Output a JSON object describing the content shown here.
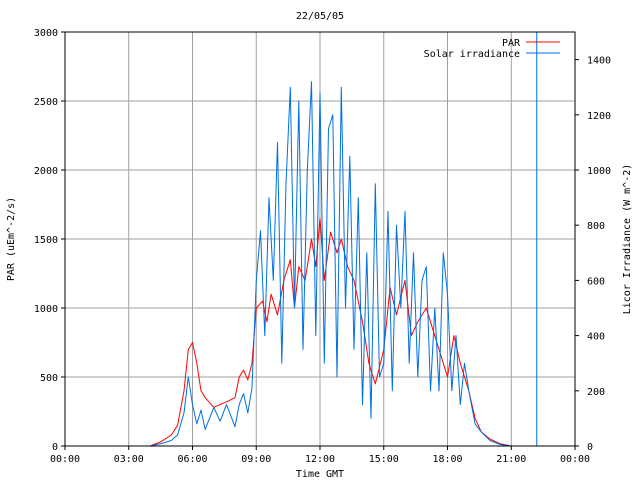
{
  "chart_data": {
    "type": "line",
    "title": "22/05/05",
    "xlabel": "Time GMT",
    "ylabel_left": "PAR (uEm^-2/s)",
    "ylabel_right": "Licor Irradiance (W m^-2)",
    "x_ticks": [
      "00:00",
      "03:00",
      "06:00",
      "09:00",
      "12:00",
      "15:00",
      "18:00",
      "21:00",
      "00:00"
    ],
    "xlim_hours": [
      0,
      24
    ],
    "ylim_left": [
      0,
      3000
    ],
    "y_ticks_left": [
      0,
      500,
      1000,
      1500,
      2000,
      2500,
      3000
    ],
    "ylim_right": [
      0,
      1500
    ],
    "y_ticks_right": [
      0,
      200,
      400,
      600,
      800,
      1000,
      1200,
      1400
    ],
    "grid": true,
    "legend_position": "top-right",
    "series": [
      {
        "name": "PAR",
        "color": "#ff0000",
        "axis": "left",
        "x": [
          0,
          4,
          4.5,
          5,
          5.3,
          5.6,
          5.8,
          6,
          6.2,
          6.4,
          6.6,
          7,
          7.3,
          7.6,
          8,
          8.2,
          8.4,
          8.6,
          8.8,
          9,
          9.3,
          9.5,
          9.7,
          10,
          10.3,
          10.6,
          10.8,
          11,
          11.3,
          11.6,
          11.8,
          12,
          12.2,
          12.5,
          12.8,
          13,
          13.3,
          13.6,
          14,
          14.3,
          14.6,
          15,
          15.3,
          15.6,
          16,
          16.3,
          16.6,
          17,
          17.3,
          17.6,
          17.8,
          18,
          18.3,
          18.6,
          19,
          19.3,
          19.6,
          20,
          20.5,
          21,
          24
        ],
        "y": [
          0,
          0,
          30,
          80,
          150,
          400,
          700,
          750,
          600,
          400,
          350,
          280,
          300,
          320,
          350,
          500,
          550,
          480,
          600,
          1000,
          1050,
          900,
          1100,
          950,
          1200,
          1350,
          1000,
          1300,
          1200,
          1500,
          1300,
          1650,
          1200,
          1550,
          1400,
          1500,
          1300,
          1200,
          900,
          600,
          450,
          700,
          1150,
          950,
          1200,
          800,
          900,
          1000,
          850,
          700,
          600,
          500,
          800,
          600,
          400,
          200,
          100,
          50,
          15,
          0,
          0
        ]
      },
      {
        "name": "Solar irradiance",
        "color": "#0070e0",
        "axis": "right",
        "x": [
          0,
          4,
          4.5,
          5,
          5.3,
          5.6,
          5.8,
          6,
          6.2,
          6.4,
          6.6,
          7,
          7.3,
          7.6,
          8,
          8.2,
          8.4,
          8.6,
          8.8,
          9,
          9.2,
          9.4,
          9.6,
          9.8,
          10,
          10.2,
          10.4,
          10.6,
          10.8,
          11,
          11.2,
          11.4,
          11.6,
          11.8,
          12,
          12.2,
          12.4,
          12.6,
          12.8,
          13,
          13.2,
          13.4,
          13.6,
          13.8,
          14,
          14.2,
          14.4,
          14.6,
          14.8,
          15,
          15.2,
          15.4,
          15.6,
          15.8,
          16,
          16.2,
          16.4,
          16.6,
          16.8,
          17,
          17.2,
          17.4,
          17.6,
          17.8,
          18,
          18.2,
          18.4,
          18.6,
          18.8,
          19,
          19.3,
          19.6,
          20,
          20.5,
          21,
          24
        ],
        "y": [
          0,
          0,
          8,
          20,
          40,
          120,
          250,
          150,
          80,
          130,
          60,
          140,
          90,
          150,
          70,
          150,
          190,
          120,
          210,
          600,
          780,
          400,
          900,
          600,
          1100,
          300,
          950,
          1300,
          500,
          1250,
          350,
          1000,
          1320,
          400,
          1280,
          300,
          1150,
          1200,
          250,
          1300,
          500,
          1050,
          350,
          900,
          150,
          700,
          100,
          950,
          250,
          300,
          850,
          200,
          800,
          500,
          850,
          300,
          700,
          250,
          600,
          650,
          200,
          500,
          200,
          700,
          550,
          200,
          400,
          150,
          300,
          200,
          80,
          50,
          20,
          5,
          0,
          0
        ]
      }
    ]
  },
  "marker_line_hours": 22.2
}
